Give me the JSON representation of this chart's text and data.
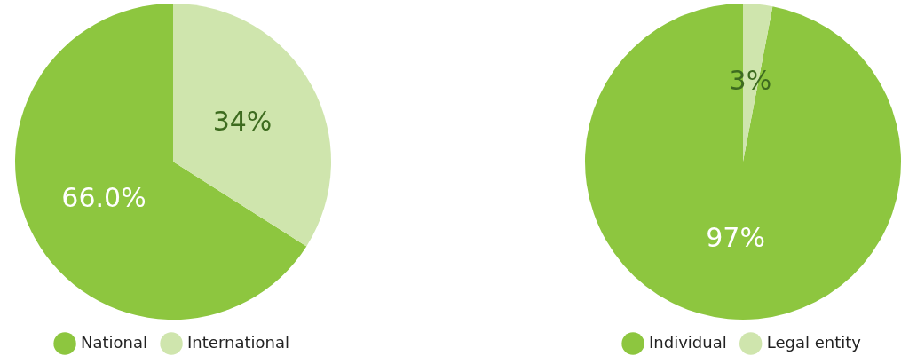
{
  "chart_data": [
    {
      "type": "pie",
      "categories": [
        "National",
        "International"
      ],
      "values": [
        66.0,
        34
      ],
      "colors": [
        "#8dc63f",
        "#cfe5ad"
      ],
      "value_labels": [
        "66.0%",
        "34%"
      ],
      "legend": "bottom"
    },
    {
      "type": "pie",
      "categories": [
        "Individual",
        "Legal entity"
      ],
      "values": [
        97,
        3
      ],
      "colors": [
        "#8dc63f",
        "#cfe5ad"
      ],
      "value_labels": [
        "97%",
        "3%"
      ],
      "legend": "bottom"
    }
  ]
}
